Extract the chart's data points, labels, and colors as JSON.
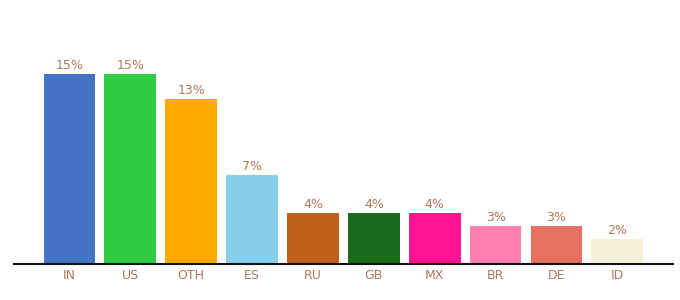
{
  "categories": [
    "IN",
    "US",
    "OTH",
    "ES",
    "RU",
    "GB",
    "MX",
    "BR",
    "DE",
    "ID"
  ],
  "values": [
    15,
    15,
    13,
    7,
    4,
    4,
    4,
    3,
    3,
    2
  ],
  "bar_colors": [
    "#4472c4",
    "#2ecc40",
    "#ffaa00",
    "#87ceeb",
    "#c0611a",
    "#1a6b1a",
    "#ff1493",
    "#ff80b0",
    "#e87060",
    "#f5f0d8"
  ],
  "ylabel": "",
  "xlabel": "",
  "ylim": [
    0,
    18
  ],
  "label_color": "#b07858",
  "label_fontsize": 9,
  "tick_fontsize": 9,
  "background_color": "#ffffff"
}
